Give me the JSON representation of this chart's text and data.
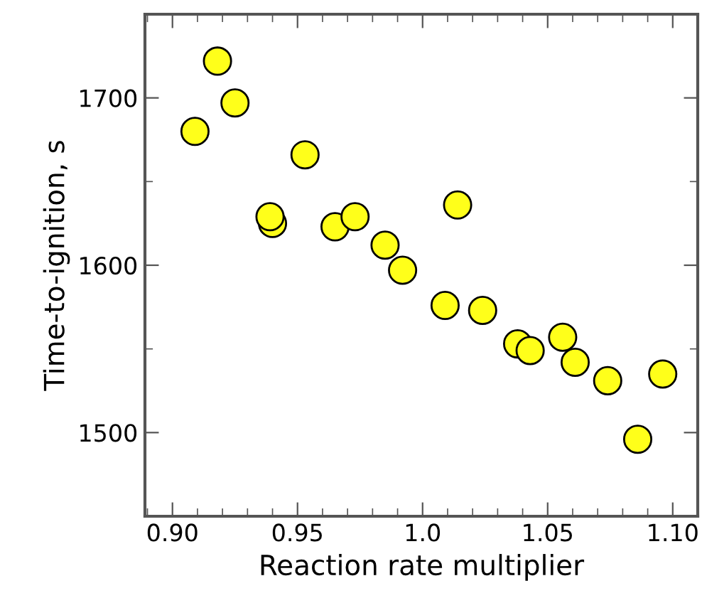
{
  "chart_data": {
    "type": "scatter",
    "xlabel": "Reaction rate multiplier",
    "ylabel": "Time-to-ignition, s",
    "x": [
      0.909,
      0.918,
      0.925,
      0.953,
      0.94,
      0.939,
      0.965,
      0.973,
      0.985,
      0.992,
      1.014,
      1.009,
      1.024,
      1.038,
      1.043,
      1.056,
      1.061,
      1.074,
      1.086,
      1.096
    ],
    "series": [
      {
        "color": "#ffff1a",
        "values": [
          1680,
          1722,
          1697,
          1666,
          1625,
          1629,
          1623,
          1629,
          1612,
          1597,
          1636,
          1576,
          1573,
          1553,
          1549,
          1557,
          1542,
          1531,
          1496,
          1535
        ]
      }
    ],
    "marker": "circle",
    "xlim": [
      0.889,
      1.11
    ],
    "ylim": [
      1450,
      1750
    ],
    "xticks": [
      {
        "value": 0.9,
        "label": "0.90"
      },
      {
        "value": 0.95,
        "label": "0.95"
      },
      {
        "value": 1.0,
        "label": "1.0"
      },
      {
        "value": 1.05,
        "label": "1.05"
      },
      {
        "value": 1.1,
        "label": "1.10"
      }
    ],
    "yticks": [
      1500,
      1600,
      1700
    ],
    "grid": false,
    "legend": false
  }
}
